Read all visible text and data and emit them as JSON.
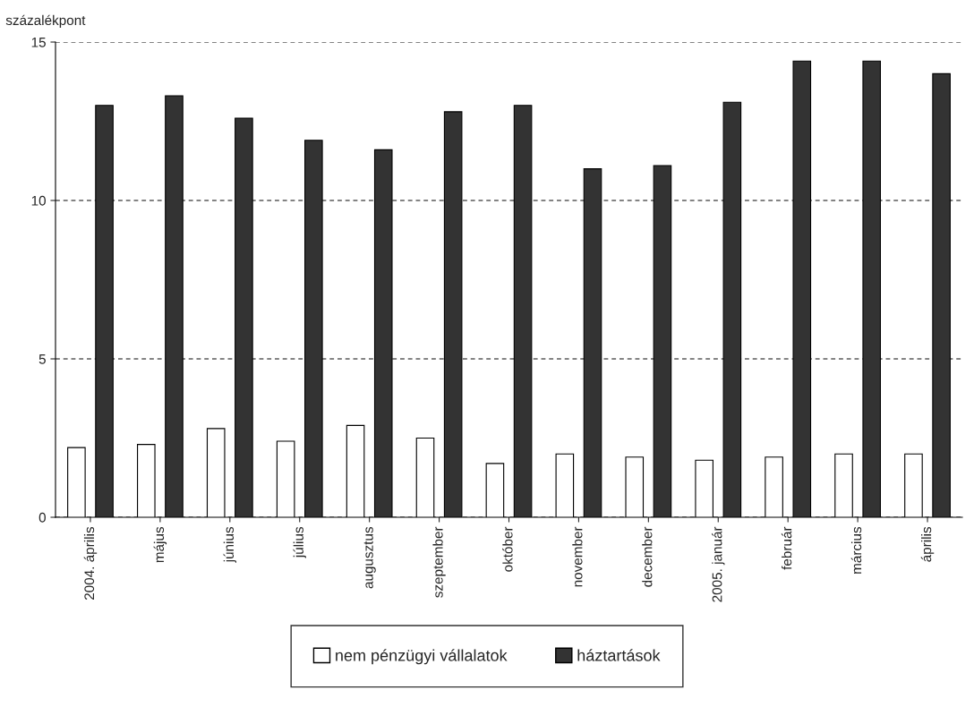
{
  "chart_data": {
    "type": "bar",
    "ylabel": "százalékpont",
    "categories": [
      "2004. április",
      "május",
      "június",
      "július",
      "augusztus",
      "szeptember",
      "október",
      "november",
      "december",
      "2005. január",
      "február",
      "március",
      "április"
    ],
    "series": [
      {
        "name": "nem pénzügyi vállalatok",
        "color": "#ffffff",
        "values": [
          2.2,
          2.3,
          2.8,
          2.4,
          2.9,
          2.5,
          1.7,
          2.0,
          1.9,
          1.8,
          1.9,
          2.0,
          2.0
        ]
      },
      {
        "name": "háztartások",
        "color": "#333333",
        "values": [
          13.0,
          13.3,
          12.6,
          11.9,
          11.6,
          12.8,
          13.0,
          11.0,
          11.1,
          13.1,
          14.4,
          14.4,
          14.0
        ]
      }
    ],
    "ylim": [
      0,
      15
    ],
    "yticks": [
      0,
      5,
      10,
      15
    ],
    "grid": "y",
    "legend": "bottom"
  }
}
